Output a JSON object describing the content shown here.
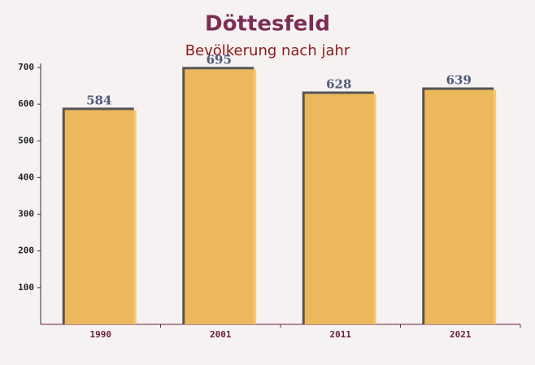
{
  "chart_data": {
    "type": "bar",
    "title": "Döttesfeld",
    "subtitle": "Bevölkerung nach jahr",
    "categories": [
      "1990",
      "2001",
      "2011",
      "2021"
    ],
    "values": [
      584,
      695,
      628,
      639
    ],
    "color": "#fdc35f",
    "ylim": [
      0,
      700
    ],
    "yticks": [
      100,
      200,
      300,
      400,
      500,
      600,
      700
    ]
  }
}
